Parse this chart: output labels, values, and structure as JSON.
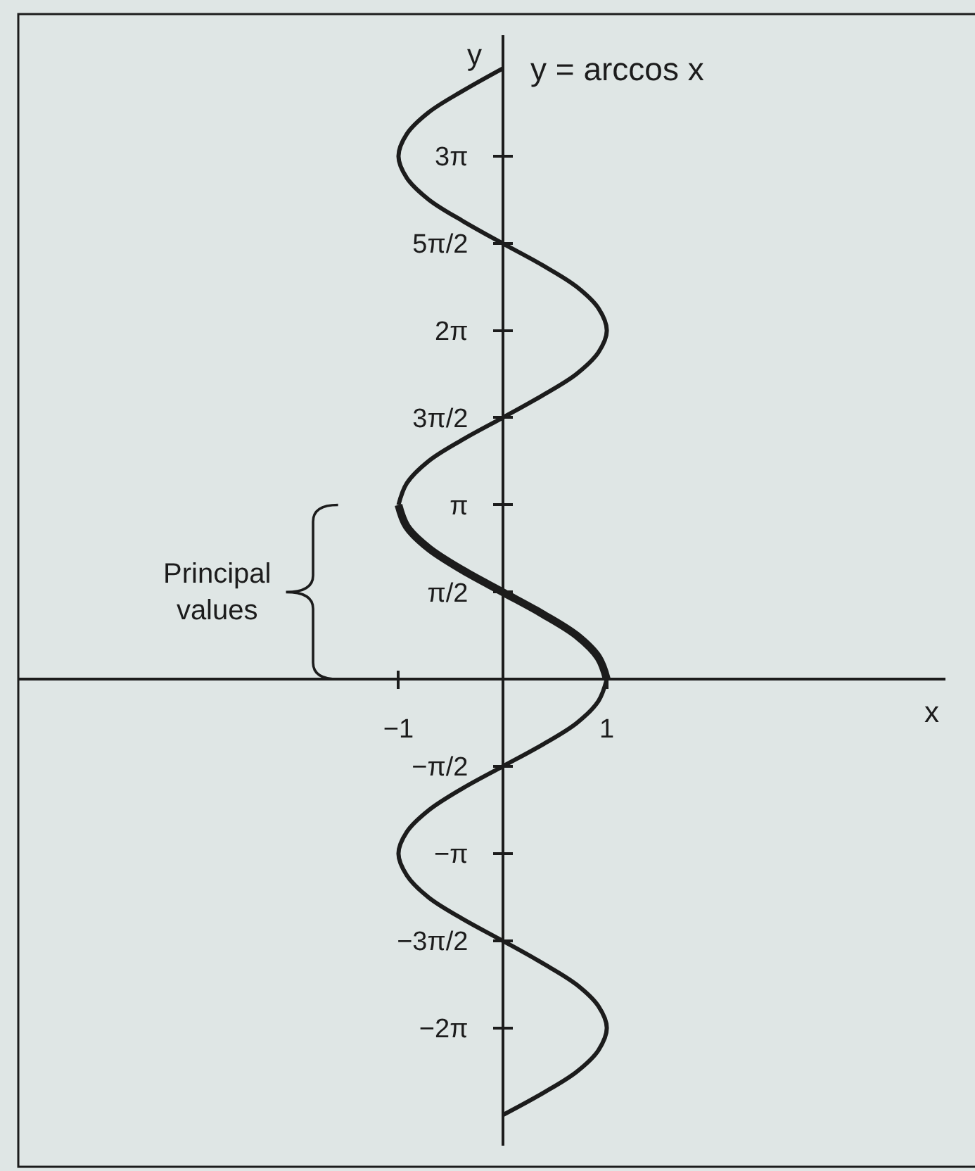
{
  "chart_data": {
    "type": "line",
    "xlabel": "x",
    "ylabel": "y",
    "xlim": [
      -4.65,
      4.25
    ],
    "ylim": [
      -8.4,
      11.6
    ],
    "xticks": [
      {
        "value": -1,
        "label": "−1"
      },
      1
    ],
    "yticks": [
      {
        "value": -6.2832,
        "label": "−2π"
      },
      {
        "value": -4.7124,
        "label": "−3π/2"
      },
      {
        "value": -3.1416,
        "label": "−π"
      },
      {
        "value": -1.5708,
        "label": "−π/2"
      },
      {
        "value": 1.5708,
        "label": "π/2"
      },
      {
        "value": 3.1416,
        "label": "π"
      },
      {
        "value": 4.7124,
        "label": "3π/2"
      },
      {
        "value": 6.2832,
        "label": "2π"
      },
      {
        "value": 7.854,
        "label": "5π/2"
      },
      {
        "value": 9.4248,
        "label": "3π"
      }
    ],
    "annotations": [
      "Principal values"
    ],
    "series": [
      {
        "name": "y = arccos x",
        "color": "#1c1c1c",
        "x": [
          0,
          -0.38,
          -0.71,
          -0.92,
          -1,
          -0.92,
          -0.71,
          -0.38,
          0,
          0.38,
          0.71,
          0.92,
          1,
          0.92,
          0.71,
          0.38,
          0,
          -0.38,
          -0.71,
          -0.92,
          -1
        ],
        "values": [
          11.0,
          10.6,
          10.21,
          9.82,
          9.42,
          9.03,
          8.64,
          8.25,
          7.85,
          7.46,
          7.07,
          6.68,
          6.28,
          5.89,
          5.5,
          5.11,
          4.71,
          4.32,
          3.93,
          3.53,
          3.14
        ]
      },
      {
        "color": "#1c1c1c",
        "x": [
          -1,
          -0.92,
          -0.71,
          -0.38,
          0,
          0.38,
          0.71,
          0.92,
          1
        ],
        "values": [
          3.14,
          2.75,
          2.36,
          1.96,
          1.57,
          1.18,
          0.79,
          0.39,
          0
        ]
      },
      {
        "color": "#1c1c1c",
        "x": [
          1,
          0.92,
          0.71,
          0.38,
          0,
          -0.38,
          -0.71,
          -0.92,
          -1,
          -0.92,
          -0.71,
          -0.38,
          0,
          0.38,
          0.71,
          0.92,
          1,
          0.92,
          0.71,
          0.38,
          0
        ],
        "values": [
          0,
          -0.39,
          -0.79,
          -1.18,
          -1.57,
          -1.96,
          -2.36,
          -2.75,
          -3.14,
          -3.53,
          -3.93,
          -4.32,
          -4.71,
          -5.11,
          -5.5,
          -5.89,
          -6.28,
          -6.68,
          -7.07,
          -7.46,
          -7.85
        ]
      }
    ]
  }
}
